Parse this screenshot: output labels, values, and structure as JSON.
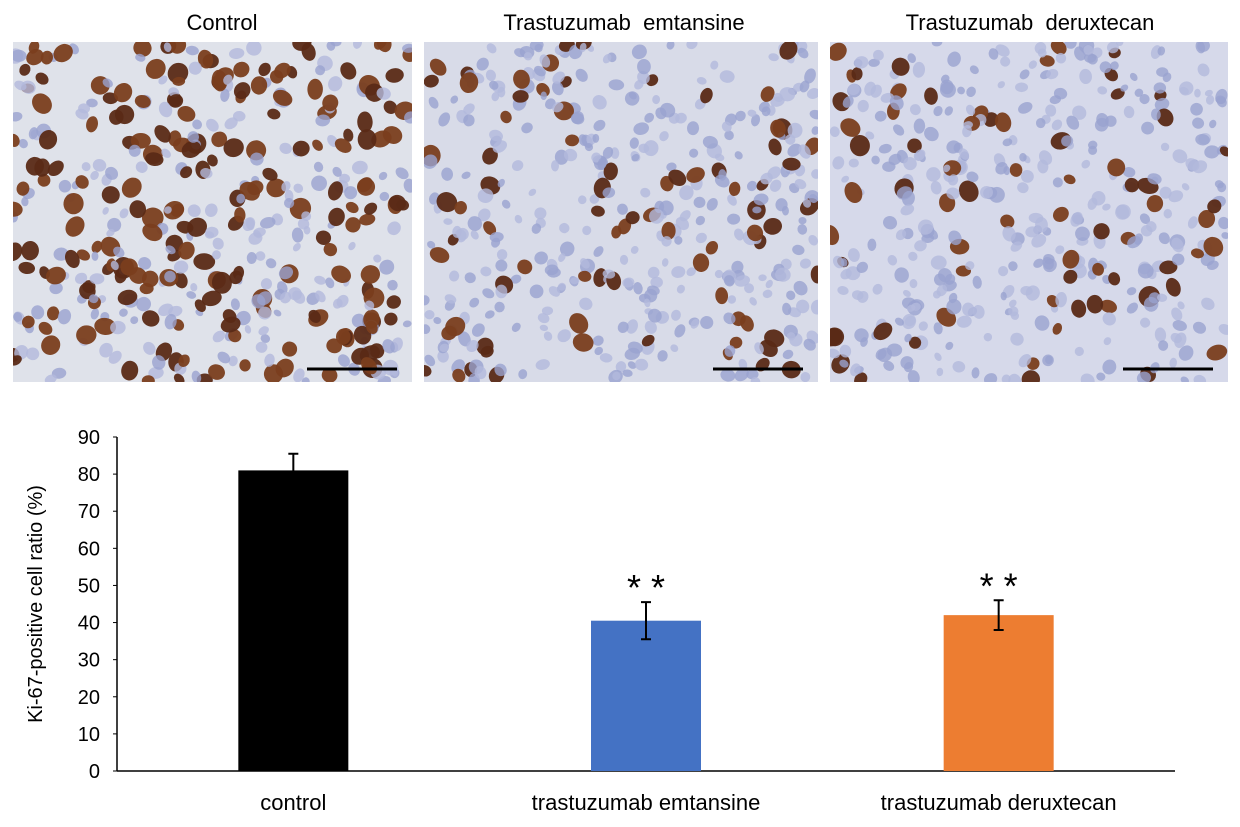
{
  "panels": [
    {
      "title": "Control"
    },
    {
      "title": "Trastuzumab  emtansine"
    },
    {
      "title": "Trastuzumab  deruxtecan"
    }
  ],
  "chart_data": {
    "type": "bar",
    "y_label": "Ki-67-positive cell ratio (%)",
    "categories": [
      "control",
      "trastuzumab emtansine",
      "trastuzumab deruxtecan"
    ],
    "values": [
      81,
      40.5,
      42
    ],
    "errors": [
      4.5,
      5,
      4
    ],
    "colors": [
      "#000000",
      "#4472c4",
      "#ed7d31"
    ],
    "significance": [
      null,
      "* *",
      "* *"
    ],
    "ylim": [
      0,
      90
    ],
    "yticks": [
      0,
      10,
      20,
      30,
      40,
      50,
      60,
      70,
      80,
      90
    ],
    "grid": false
  }
}
